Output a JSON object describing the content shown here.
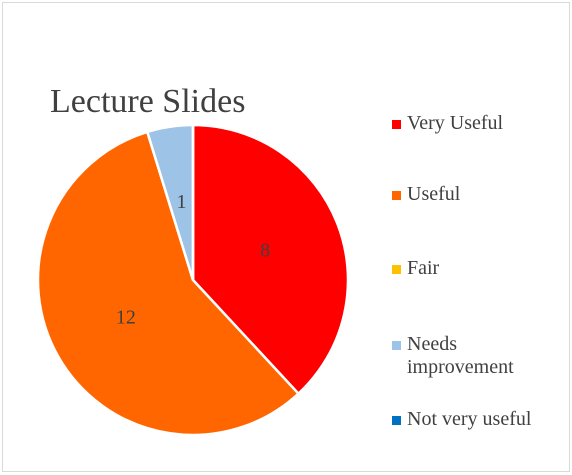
{
  "chart_data": {
    "type": "pie",
    "title": "Lecture Slides",
    "categories": [
      "Very Useful",
      "Useful",
      "Fair",
      "Needs improvement",
      "Not very useful"
    ],
    "values": [
      8,
      12,
      0,
      1,
      0
    ],
    "colors": [
      "#ff0000",
      "#ff6600",
      "#ffc000",
      "#9dc3e6",
      "#0070c0"
    ],
    "legend": "right"
  }
}
